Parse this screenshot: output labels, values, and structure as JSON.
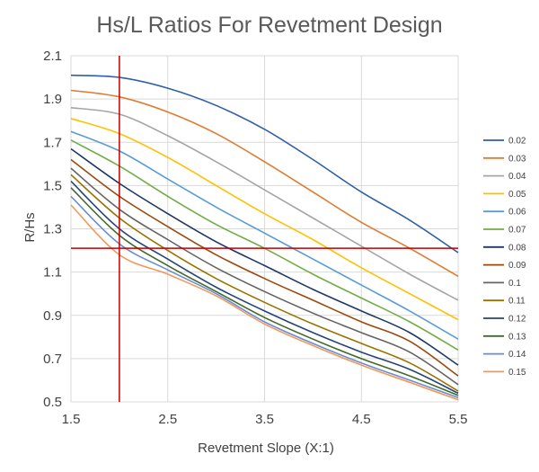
{
  "chart_data": {
    "type": "line",
    "title": "Hs/L Ratios For Revetment Design",
    "xlabel": "Revetment Slope (X:1)",
    "ylabel": "R/Hs",
    "xlim": [
      1.5,
      5.5
    ],
    "ylim": [
      0.5,
      2.1
    ],
    "xticks": [
      "1.5",
      "2.5",
      "3.5",
      "4.5",
      "5.5"
    ],
    "yticks": [
      "0.5",
      "0.7",
      "0.9",
      "1.1",
      "1.3",
      "1.5",
      "1.7",
      "1.9",
      "2.1"
    ],
    "grid": true,
    "legend_position": "right",
    "x": [
      1.5,
      2.0,
      2.5,
      3.0,
      3.5,
      4.0,
      4.5,
      5.0,
      5.5
    ],
    "series": [
      {
        "name": "0.02",
        "color": "#2E5FA8",
        "values": [
          2.01,
          2.0,
          1.95,
          1.87,
          1.76,
          1.62,
          1.47,
          1.34,
          1.19
        ]
      },
      {
        "name": "0.03",
        "color": "#E07B2E",
        "values": [
          1.94,
          1.91,
          1.84,
          1.74,
          1.61,
          1.47,
          1.33,
          1.21,
          1.08
        ]
      },
      {
        "name": "0.04",
        "color": "#A5A5A5",
        "values": [
          1.86,
          1.83,
          1.73,
          1.61,
          1.48,
          1.35,
          1.22,
          1.09,
          0.97
        ]
      },
      {
        "name": "0.05",
        "color": "#FFC000",
        "values": [
          1.81,
          1.74,
          1.63,
          1.5,
          1.37,
          1.25,
          1.12,
          1.0,
          0.88
        ]
      },
      {
        "name": "0.06",
        "color": "#5B9BD5",
        "values": [
          1.75,
          1.66,
          1.53,
          1.4,
          1.28,
          1.16,
          1.04,
          0.92,
          0.79
        ]
      },
      {
        "name": "0.07",
        "color": "#70AD47",
        "values": [
          1.71,
          1.59,
          1.45,
          1.32,
          1.21,
          1.09,
          0.98,
          0.87,
          0.74
        ]
      },
      {
        "name": "0.08",
        "color": "#1F3864",
        "values": [
          1.67,
          1.51,
          1.37,
          1.24,
          1.13,
          1.02,
          0.92,
          0.82,
          0.67
        ]
      },
      {
        "name": "0.09",
        "color": "#9E480E",
        "values": [
          1.62,
          1.45,
          1.31,
          1.18,
          1.07,
          0.97,
          0.87,
          0.78,
          0.62
        ]
      },
      {
        "name": "0.1",
        "color": "#636363",
        "values": [
          1.58,
          1.39,
          1.25,
          1.12,
          1.01,
          0.91,
          0.82,
          0.73,
          0.58
        ]
      },
      {
        "name": "0.11",
        "color": "#997300",
        "values": [
          1.55,
          1.35,
          1.2,
          1.07,
          0.96,
          0.86,
          0.77,
          0.68,
          0.55
        ]
      },
      {
        "name": "0.12",
        "color": "#264478",
        "values": [
          1.52,
          1.3,
          1.16,
          1.03,
          0.92,
          0.82,
          0.73,
          0.65,
          0.54
        ]
      },
      {
        "name": "0.13",
        "color": "#43682B",
        "values": [
          1.49,
          1.27,
          1.13,
          1.01,
          0.89,
          0.79,
          0.7,
          0.62,
          0.53
        ]
      },
      {
        "name": "0.14",
        "color": "#698ED0",
        "values": [
          1.45,
          1.23,
          1.11,
          1.0,
          0.87,
          0.77,
          0.68,
          0.6,
          0.52
        ]
      },
      {
        "name": "0.15",
        "color": "#F1975A",
        "values": [
          1.41,
          1.18,
          1.09,
          0.99,
          0.86,
          0.76,
          0.67,
          0.59,
          0.51
        ]
      }
    ],
    "reference_lines": [
      {
        "orientation": "vertical",
        "x": 2.0,
        "color": "#C00000"
      },
      {
        "orientation": "horizontal",
        "y": 1.21,
        "color": "#C00000"
      }
    ]
  }
}
